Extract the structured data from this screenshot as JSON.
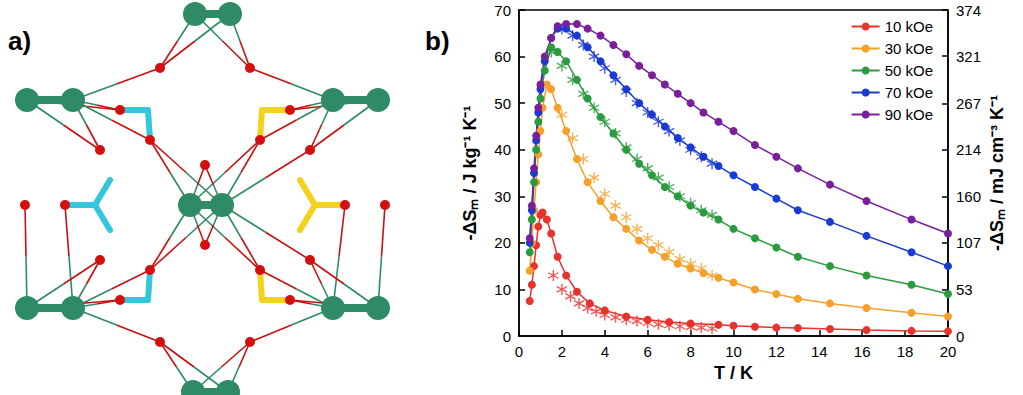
{
  "panel_labels": [
    "a)",
    "b)"
  ],
  "chart_data": {
    "type": "line",
    "x_label": "T / K",
    "y_label": "-ΔSₘ / J kg⁻¹ K⁻¹",
    "y2_label": "-ΔSₘ / mJ cm⁻³ K⁻¹",
    "xlim": [
      0,
      20
    ],
    "xticks": [
      0,
      2,
      4,
      6,
      8,
      10,
      12,
      14,
      16,
      18,
      20
    ],
    "ylim": [
      0,
      70
    ],
    "yticks": [
      0,
      10,
      20,
      30,
      40,
      50,
      60,
      70
    ],
    "y2lim": [
      0,
      374
    ],
    "y2ticks": [
      0,
      53,
      107,
      160,
      214,
      267,
      321,
      374
    ],
    "grid": false,
    "legend": "upper right",
    "series": [
      {
        "name": "10 kOe",
        "color": "#e8322c",
        "marker": "circle",
        "line_style": "solid",
        "x": [
          0.5,
          0.6,
          0.7,
          0.8,
          0.9,
          1.0,
          1.1,
          1.3,
          1.5,
          1.8,
          2.2,
          2.7,
          3.3,
          4,
          5,
          6,
          7,
          8,
          9.3,
          10,
          11,
          12,
          13,
          14.5,
          16.2,
          18.3,
          20
        ],
        "values": [
          7.5,
          11,
          15,
          19.5,
          23.5,
          26,
          26.5,
          25,
          22,
          17,
          13,
          9.5,
          7,
          5.5,
          4.2,
          3.5,
          3,
          2.7,
          2.4,
          2.2,
          2.0,
          1.8,
          1.7,
          1.5,
          1.3,
          1.1,
          1.0
        ]
      },
      {
        "name": "10 kOe",
        "color": "#e8322c",
        "marker": "asterisk",
        "line_style": "none",
        "x": [
          1.6,
          2.0,
          2.4,
          2.8,
          3.2,
          3.6,
          4.0,
          4.5,
          5.0,
          5.5,
          6.0,
          6.5,
          7.0,
          7.5,
          8.0,
          8.5,
          9.0
        ],
        "values": [
          13,
          10,
          8.5,
          7,
          6,
          5.3,
          4.5,
          4.0,
          3.5,
          3.2,
          2.8,
          2.5,
          2.3,
          2.1,
          1.9,
          1.8,
          1.6
        ]
      },
      {
        "name": "30 kOe",
        "color": "#f5a02a",
        "marker": "circle",
        "line_style": "solid",
        "x": [
          0.5,
          0.6,
          0.7,
          0.8,
          0.9,
          1.0,
          1.1,
          1.3,
          1.5,
          1.8,
          2.2,
          2.7,
          3.2,
          3.8,
          4.4,
          5,
          5.6,
          6.2,
          6.8,
          7.4,
          8,
          8.6,
          9.3,
          10,
          11,
          12,
          13,
          14.5,
          16.2,
          18.3,
          20
        ],
        "values": [
          14,
          20,
          27,
          33,
          39,
          44,
          49,
          54,
          53,
          49,
          44,
          38,
          33,
          29,
          25.5,
          23,
          20.5,
          18.5,
          17,
          15.5,
          14.5,
          13.5,
          12.5,
          11.5,
          10,
          9,
          8,
          7,
          6,
          5,
          4.2
        ]
      },
      {
        "name": "30 kOe",
        "color": "#f5a02a",
        "marker": "asterisk",
        "line_style": "none",
        "x": [
          2.0,
          2.5,
          3.0,
          3.5,
          4.0,
          4.5,
          5.0,
          5.5,
          6.0,
          6.5,
          7.0,
          7.5,
          8.0,
          8.5,
          9.0
        ],
        "values": [
          47.5,
          42.5,
          38,
          34,
          30.5,
          28,
          25.5,
          23,
          21,
          19.5,
          18,
          16.5,
          15.5,
          14.5,
          13
        ]
      },
      {
        "name": "50 kOe",
        "color": "#2a9b3e",
        "marker": "circle",
        "line_style": "solid",
        "x": [
          0.5,
          0.6,
          0.7,
          0.8,
          0.9,
          1.0,
          1.2,
          1.5,
          1.8,
          2.2,
          2.7,
          3.2,
          3.8,
          4.4,
          5,
          5.6,
          6.2,
          6.8,
          7.4,
          8,
          8.6,
          9.3,
          10,
          11,
          12,
          13,
          14.5,
          16.2,
          18.3,
          20
        ],
        "values": [
          18,
          25,
          33,
          40,
          46,
          51,
          57,
          62,
          61,
          59,
          55,
          51,
          47,
          43.5,
          40,
          37,
          34.5,
          32,
          30,
          28,
          26.5,
          25,
          23,
          21,
          19,
          17,
          15,
          13,
          11,
          9
        ]
      },
      {
        "name": "50 kOe",
        "color": "#2a9b3e",
        "marker": "asterisk",
        "line_style": "none",
        "x": [
          1.5,
          2.0,
          2.5,
          3.0,
          3.5,
          4.0,
          4.5,
          5.0,
          5.5,
          6.0,
          6.5,
          7.0,
          7.5,
          8.0,
          8.5,
          9.0
        ],
        "values": [
          61,
          58,
          55,
          52,
          49,
          46,
          43.5,
          40.5,
          38,
          36,
          34,
          32,
          30,
          28.5,
          27,
          26
        ]
      },
      {
        "name": "70 kOe",
        "color": "#1a3ad4",
        "marker": "circle",
        "line_style": "solid",
        "x": [
          0.5,
          0.6,
          0.7,
          0.8,
          0.9,
          1.0,
          1.2,
          1.5,
          1.8,
          2.2,
          2.7,
          3.2,
          3.8,
          4.4,
          5,
          5.6,
          6.2,
          6.8,
          7.4,
          8,
          8.6,
          9.3,
          10,
          11,
          12,
          13,
          14.5,
          16.2,
          18.3,
          20
        ],
        "values": [
          20,
          27,
          35,
          42,
          48,
          53,
          59,
          64,
          66,
          66,
          64.5,
          62,
          59,
          56,
          53,
          50,
          47.5,
          45,
          42.5,
          40.5,
          38.5,
          36.5,
          34.5,
          32,
          29.5,
          27,
          24.5,
          21.5,
          18,
          15
        ]
      },
      {
        "name": "70 kOe",
        "color": "#1a3ad4",
        "marker": "asterisk",
        "line_style": "none",
        "x": [
          2.0,
          2.5,
          3.0,
          3.5,
          4.0,
          4.5,
          5.0,
          5.5,
          6.0,
          6.5,
          7.0,
          7.5,
          8.0,
          8.5,
          9.0
        ],
        "values": [
          66,
          64.5,
          62.5,
          60,
          57.5,
          55,
          52.5,
          50,
          48,
          46,
          44,
          42,
          40,
          38.5,
          37
        ]
      },
      {
        "name": "90 kOe",
        "color": "#7a1f9c",
        "marker": "circle",
        "line_style": "solid",
        "x": [
          0.5,
          0.6,
          0.7,
          0.8,
          0.9,
          1.0,
          1.2,
          1.5,
          1.8,
          2.2,
          2.7,
          3.2,
          3.8,
          4.4,
          5,
          5.6,
          6.2,
          6.8,
          7.4,
          8,
          8.6,
          9.3,
          10,
          11,
          12,
          13,
          14.5,
          16.2,
          18.3,
          20
        ],
        "values": [
          21,
          28,
          36,
          43,
          49,
          54,
          60,
          64,
          66.5,
          67,
          67,
          66,
          64.5,
          62.5,
          60.5,
          58,
          56,
          54,
          52,
          50,
          48,
          46,
          44,
          41,
          38.5,
          36,
          32.5,
          29,
          25,
          22
        ]
      }
    ]
  }
}
